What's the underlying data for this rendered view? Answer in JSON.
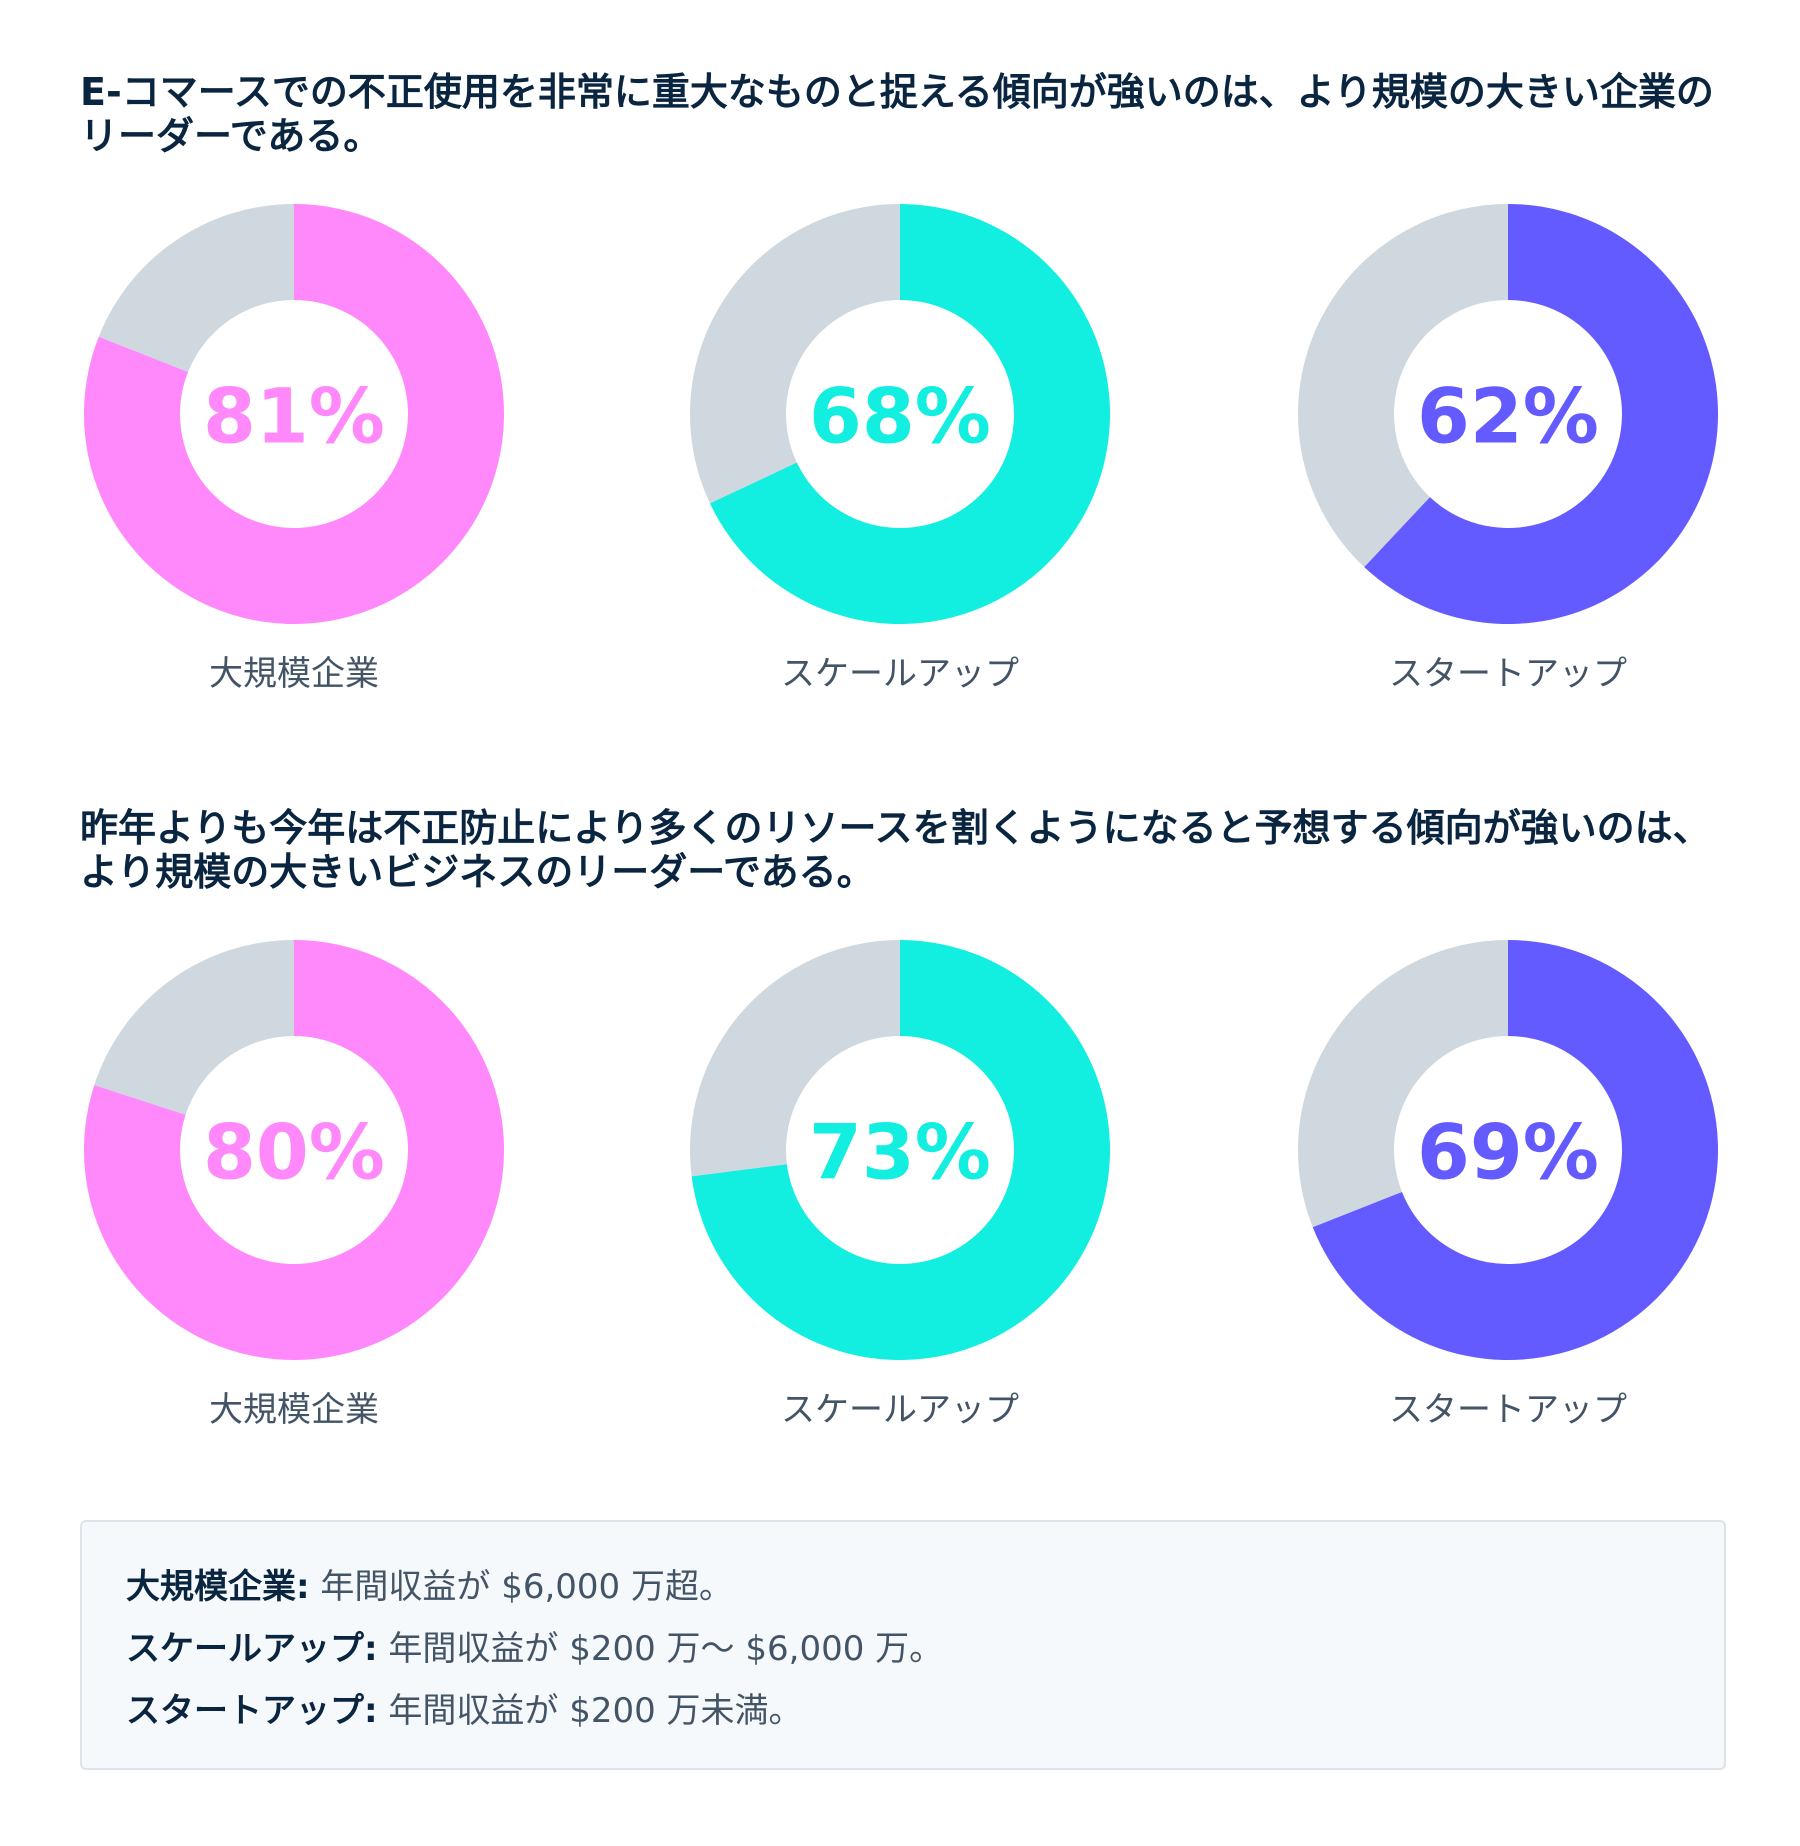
{
  "colors": {
    "remainder": "#d0d8df",
    "large": "#ff88fb",
    "scaleup": "#12eee0",
    "startup": "#635bff",
    "title": "#0a2540",
    "label": "#425466"
  },
  "sections": [
    {
      "title": "E-コマースでの不正使用を非常に重大なものと捉える傾向が強いのは、より規模の大きい企業のリーダーである。",
      "donuts": [
        {
          "label": "大規模企業",
          "value": 81,
          "display": "81%",
          "color": "#ff88fb"
        },
        {
          "label": "スケールアップ",
          "value": 68,
          "display": "68%",
          "color": "#12eee0"
        },
        {
          "label": "スタートアップ",
          "value": 62,
          "display": "62%",
          "color": "#635bff"
        }
      ]
    },
    {
      "title": "昨年よりも今年は不正防止により多くのリソースを割くようになると予想する傾向が強いのは、より規模の大きいビジネスのリーダーである。",
      "donuts": [
        {
          "label": "大規模企業",
          "value": 80,
          "display": "80%",
          "color": "#ff88fb"
        },
        {
          "label": "スケールアップ",
          "value": 73,
          "display": "73%",
          "color": "#12eee0"
        },
        {
          "label": "スタートアップ",
          "value": 69,
          "display": "69%",
          "color": "#635bff"
        }
      ]
    }
  ],
  "chart_data": [
    {
      "type": "pie",
      "title": "E-コマースでの不正使用を非常に重大なものと捉える傾向が強いのは、より規模の大きい企業のリーダーである。",
      "categories": [
        "大規模企業",
        "スケールアップ",
        "スタートアップ"
      ],
      "values": [
        81,
        68,
        62
      ],
      "unit": "%"
    },
    {
      "type": "pie",
      "title": "昨年よりも今年は不正防止により多くのリソースを割くようになると予想する傾向が強いのは、より規模の大きいビジネスのリーダーである。",
      "categories": [
        "大規模企業",
        "スケールアップ",
        "スタートアップ"
      ],
      "values": [
        80,
        73,
        69
      ],
      "unit": "%"
    }
  ],
  "legend": [
    {
      "term": "大規模企業:",
      "desc": " 年間収益が $6,000 万超。"
    },
    {
      "term": "スケールアップ:",
      "desc": " 年間収益が $200 万〜 $6,000 万。"
    },
    {
      "term": "スタートアップ:",
      "desc": " 年間収益が $200 万未満。"
    }
  ]
}
